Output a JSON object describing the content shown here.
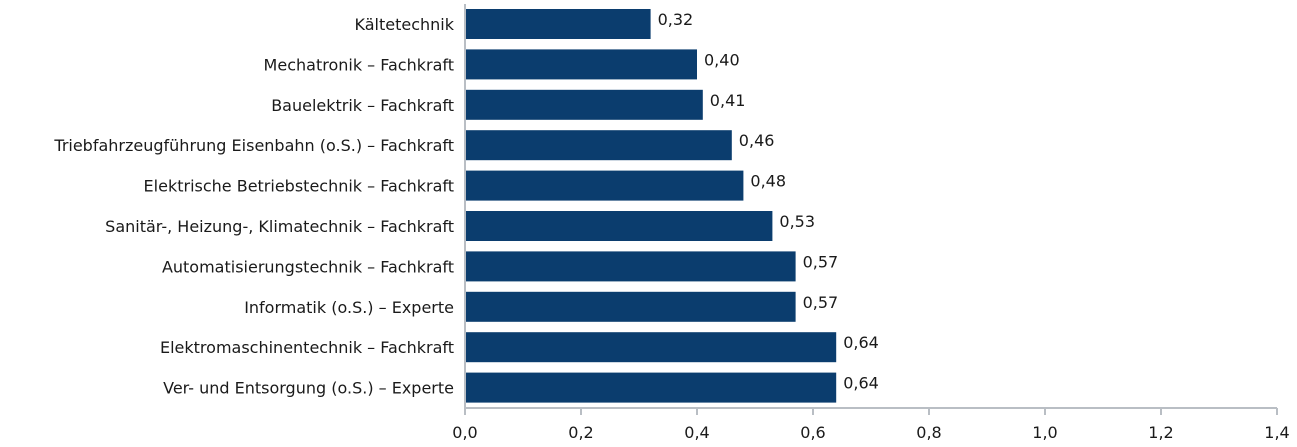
{
  "chart_data": {
    "type": "bar",
    "orientation": "horizontal",
    "categories": [
      "Kältetechnik",
      "Mechatronik – Fachkraft",
      "Bauelektrik – Fachkraft",
      "Triebfahrzeugführung Eisenbahn (o.S.) – Fachkraft",
      "Elektrische Betriebstechnik – Fachkraft",
      "Sanitär-, Heizung-, Klimatechnik – Fachkraft",
      "Automatisierungstechnik – Fachkraft",
      "Informatik (o.S.) – Experte",
      "Elektromaschinentechnik – Fachkraft",
      "Ver- und Entsorgung (o.S.) – Experte"
    ],
    "values": [
      0.32,
      0.4,
      0.41,
      0.46,
      0.48,
      0.53,
      0.57,
      0.57,
      0.64,
      0.64
    ],
    "value_labels": [
      "0,32",
      "0,40",
      "0,41",
      "0,46",
      "0,48",
      "0,53",
      "0,57",
      "0,57",
      "0,64",
      "0,64"
    ],
    "xlim": [
      0,
      1.4
    ],
    "x_ticks": [
      0,
      0.2,
      0.4,
      0.6,
      0.8,
      1.0,
      1.2,
      1.4
    ],
    "x_tick_labels": [
      "0,0",
      "0,2",
      "0,4",
      "0,6",
      "0,8",
      "1,0",
      "1,2",
      "1,4"
    ],
    "title": "",
    "xlabel": "",
    "ylabel": "",
    "grid": false,
    "colors": {
      "bar": "#0b3d6e",
      "axis": "#b9bec4",
      "text": "#1a1a1a"
    }
  }
}
